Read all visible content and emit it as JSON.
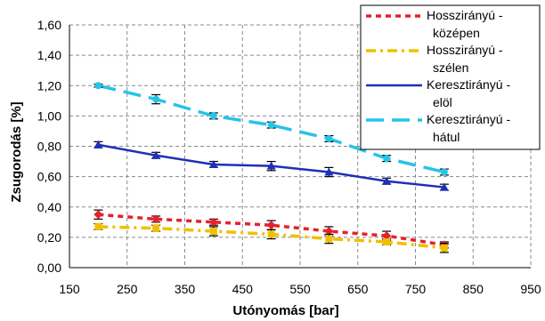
{
  "chart_data": {
    "type": "line",
    "title": "",
    "xlabel": "Utónyomás [bar]",
    "ylabel": "Zsugorodás [%]",
    "xlim": [
      150,
      950
    ],
    "ylim": [
      0,
      1.6
    ],
    "x_ticks": [
      "150",
      "250",
      "350",
      "450",
      "550",
      "650",
      "750",
      "850",
      "950"
    ],
    "y_ticks": [
      "0,00",
      "0,20",
      "0,40",
      "0,60",
      "0,80",
      "1,00",
      "1,20",
      "1,40",
      "1,60"
    ],
    "grid": true,
    "legend_position": "top-right",
    "x": [
      200,
      300,
      400,
      500,
      600,
      700,
      800
    ],
    "series": [
      {
        "name": "Hossziranyu - kozepen",
        "label_lines": [
          "Hosszirányú -",
          "középen"
        ],
        "color": "#e8202a",
        "line_style": "dotted",
        "marker": "diamond",
        "values": [
          0.35,
          0.32,
          0.3,
          0.28,
          0.24,
          0.21,
          0.15
        ],
        "errors": [
          0.03,
          0.02,
          0.02,
          0.03,
          0.03,
          0.03,
          0.02
        ]
      },
      {
        "name": "Hossziranyu - szelen",
        "label_lines": [
          "Hosszirányú -",
          "szélen"
        ],
        "color": "#f0c000",
        "line_style": "dash-dot",
        "marker": "square",
        "values": [
          0.27,
          0.26,
          0.24,
          0.22,
          0.19,
          0.17,
          0.13
        ],
        "errors": [
          0.02,
          0.02,
          0.03,
          0.03,
          0.03,
          0.02,
          0.03
        ]
      },
      {
        "name": "Keresztiranyu - elol",
        "label_lines": [
          "Keresztirányú -",
          "elöl"
        ],
        "color": "#1f2fb8",
        "line_style": "solid",
        "marker": "triangle",
        "values": [
          0.81,
          0.74,
          0.68,
          0.67,
          0.63,
          0.57,
          0.53
        ],
        "errors": [
          0.02,
          0.02,
          0.02,
          0.03,
          0.03,
          0.02,
          0.02
        ]
      },
      {
        "name": "Keresztiranyu - hatul",
        "label_lines": [
          "Keresztirányú -",
          "hátul"
        ],
        "color": "#25c4e8",
        "line_style": "dashed",
        "marker": "circle",
        "values": [
          1.2,
          1.11,
          1.0,
          0.94,
          0.85,
          0.72,
          0.63
        ],
        "errors": [
          0.01,
          0.03,
          0.02,
          0.02,
          0.02,
          0.02,
          0.02
        ]
      }
    ]
  }
}
